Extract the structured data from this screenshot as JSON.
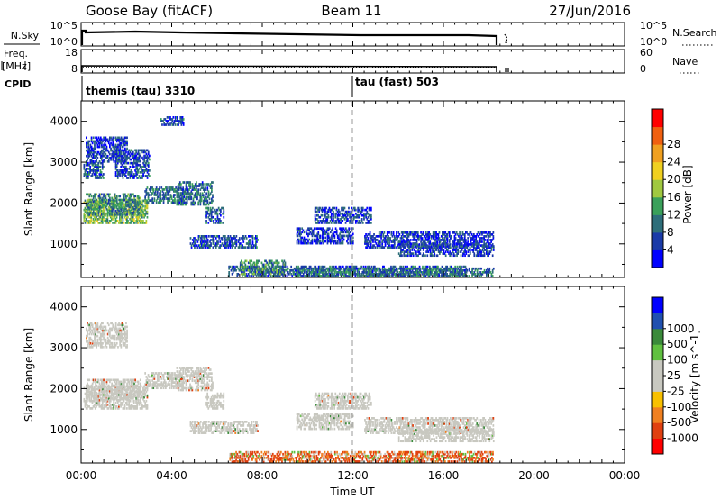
{
  "header": {
    "station": "Goose Bay (fitACF)",
    "beam": "Beam 11",
    "date": "27/Jun/2016"
  },
  "summary_panels": {
    "nsky": {
      "label": "N.Sky",
      "left_ticks": [
        "10^5",
        "10^0"
      ],
      "right_ticks": [
        "10^5",
        "10^0"
      ],
      "right_label": "N.Search"
    },
    "freq": {
      "label_lines": [
        "Freq.",
        "[MHz]"
      ],
      "left_ticks": [
        "18",
        "8"
      ],
      "right_ticks": [
        "60",
        "0"
      ],
      "right_label": "Nave"
    },
    "cpid": {
      "label": "CPID",
      "segments": [
        {
          "text": "themis (tau) 3310",
          "start_hour": 0
        },
        {
          "text": "tau (fast) 503",
          "start_hour": 12
        }
      ]
    }
  },
  "colors": {
    "power_scale": [
      "#0000ff",
      "#1a3aa8",
      "#2e6e7a",
      "#3aa05a",
      "#a0c840",
      "#f0d020",
      "#f0a020",
      "#f06010",
      "#ff0000"
    ],
    "velocity_scale": [
      "#ff0000",
      "#e04010",
      "#f08020",
      "#f8c000",
      "#c8c8c0",
      "#c8c8c0",
      "#60c040",
      "#3a8a3a",
      "#2050b0",
      "#0000ff"
    ],
    "gray_data": "#c8c8c0"
  },
  "chart_data": [
    {
      "type": "heatmap",
      "name": "power-panel",
      "xlabel": "",
      "ylabel": "Slant Range [km]",
      "xlim": [
        0,
        24
      ],
      "ylim": [
        180,
        4500
      ],
      "yticks": [
        1000,
        2000,
        3000,
        4000
      ],
      "colorbar": {
        "label": "Power [dB]",
        "min": 0,
        "max": 32,
        "ticks": [
          "4",
          "8",
          "12",
          "16",
          "20",
          "24",
          "28"
        ]
      },
      "regions": [
        {
          "t": [
            0.1,
            2.9
          ],
          "r": [
            1500,
            2050
          ],
          "v": 16
        },
        {
          "t": [
            0.2,
            2.6
          ],
          "r": [
            1700,
            2200
          ],
          "v": 12
        },
        {
          "t": [
            2.8,
            4.5
          ],
          "r": [
            2000,
            2400
          ],
          "v": 10
        },
        {
          "t": [
            4.2,
            5.8
          ],
          "r": [
            1950,
            2500
          ],
          "v": 9
        },
        {
          "t": [
            5.5,
            6.3
          ],
          "r": [
            1500,
            1900
          ],
          "v": 8
        },
        {
          "t": [
            0.1,
            1.0
          ],
          "r": [
            2600,
            3000
          ],
          "v": 7
        },
        {
          "t": [
            0.2,
            2.0
          ],
          "r": [
            3000,
            3600
          ],
          "v": 6
        },
        {
          "t": [
            1.5,
            3.0
          ],
          "r": [
            2600,
            3300
          ],
          "v": 7
        },
        {
          "t": [
            3.5,
            4.5
          ],
          "r": [
            3900,
            4100
          ],
          "v": 7
        },
        {
          "t": [
            4.8,
            7.8
          ],
          "r": [
            900,
            1200
          ],
          "v": 7
        },
        {
          "t": [
            6.5,
            17.0
          ],
          "r": [
            200,
            450
          ],
          "v": 8
        },
        {
          "t": [
            9.5,
            18.2
          ],
          "r": [
            200,
            420
          ],
          "v": 10
        },
        {
          "t": [
            10.3,
            12.8
          ],
          "r": [
            1500,
            1900
          ],
          "v": 6
        },
        {
          "t": [
            12.5,
            18.2
          ],
          "r": [
            900,
            1300
          ],
          "v": 6
        },
        {
          "t": [
            14.0,
            18.2
          ],
          "r": [
            700,
            1000
          ],
          "v": 6
        },
        {
          "t": [
            9.5,
            12.0
          ],
          "r": [
            1000,
            1400
          ],
          "v": 5
        },
        {
          "t": [
            7.0,
            9.0
          ],
          "r": [
            250,
            600
          ],
          "v": 12
        }
      ]
    },
    {
      "type": "heatmap",
      "name": "velocity-panel",
      "xlabel": "Time UT",
      "ylabel": "Slant Range [km]",
      "xlim": [
        0,
        24
      ],
      "ylim": [
        180,
        4500
      ],
      "xticks": [
        "00:00",
        "04:00",
        "08:00",
        "12:00",
        "16:00",
        "20:00",
        "00:00"
      ],
      "yticks": [
        1000,
        2000,
        3000,
        4000
      ],
      "colorbar": {
        "label": "Velocity [m s^-1]",
        "ticks": [
          "-1000",
          "-500",
          "-100",
          "-25",
          "25",
          "100",
          "500",
          "1000"
        ]
      },
      "regions": [
        {
          "t": [
            0.1,
            2.9
          ],
          "r": [
            1500,
            2050
          ],
          "v": 0
        },
        {
          "t": [
            0.2,
            2.6
          ],
          "r": [
            1700,
            2200
          ],
          "v": 0
        },
        {
          "t": [
            2.8,
            4.5
          ],
          "r": [
            2000,
            2400
          ],
          "v": 0
        },
        {
          "t": [
            4.2,
            5.8
          ],
          "r": [
            1950,
            2500
          ],
          "v": 0
        },
        {
          "t": [
            5.5,
            6.3
          ],
          "r": [
            1500,
            1900
          ],
          "v": 0
        },
        {
          "t": [
            0.2,
            2.0
          ],
          "r": [
            3000,
            3600
          ],
          "v": 0
        },
        {
          "t": [
            4.8,
            7.8
          ],
          "r": [
            900,
            1200
          ],
          "v": 0
        },
        {
          "t": [
            6.5,
            18.2
          ],
          "r": [
            200,
            450
          ],
          "v": -100
        },
        {
          "t": [
            10.3,
            12.8
          ],
          "r": [
            1500,
            1900
          ],
          "v": 0
        },
        {
          "t": [
            12.5,
            18.2
          ],
          "r": [
            900,
            1300
          ],
          "v": 0
        },
        {
          "t": [
            14.0,
            18.2
          ],
          "r": [
            700,
            1000
          ],
          "v": 0
        },
        {
          "t": [
            9.5,
            12.0
          ],
          "r": [
            1000,
            1400
          ],
          "v": 0
        }
      ]
    }
  ]
}
